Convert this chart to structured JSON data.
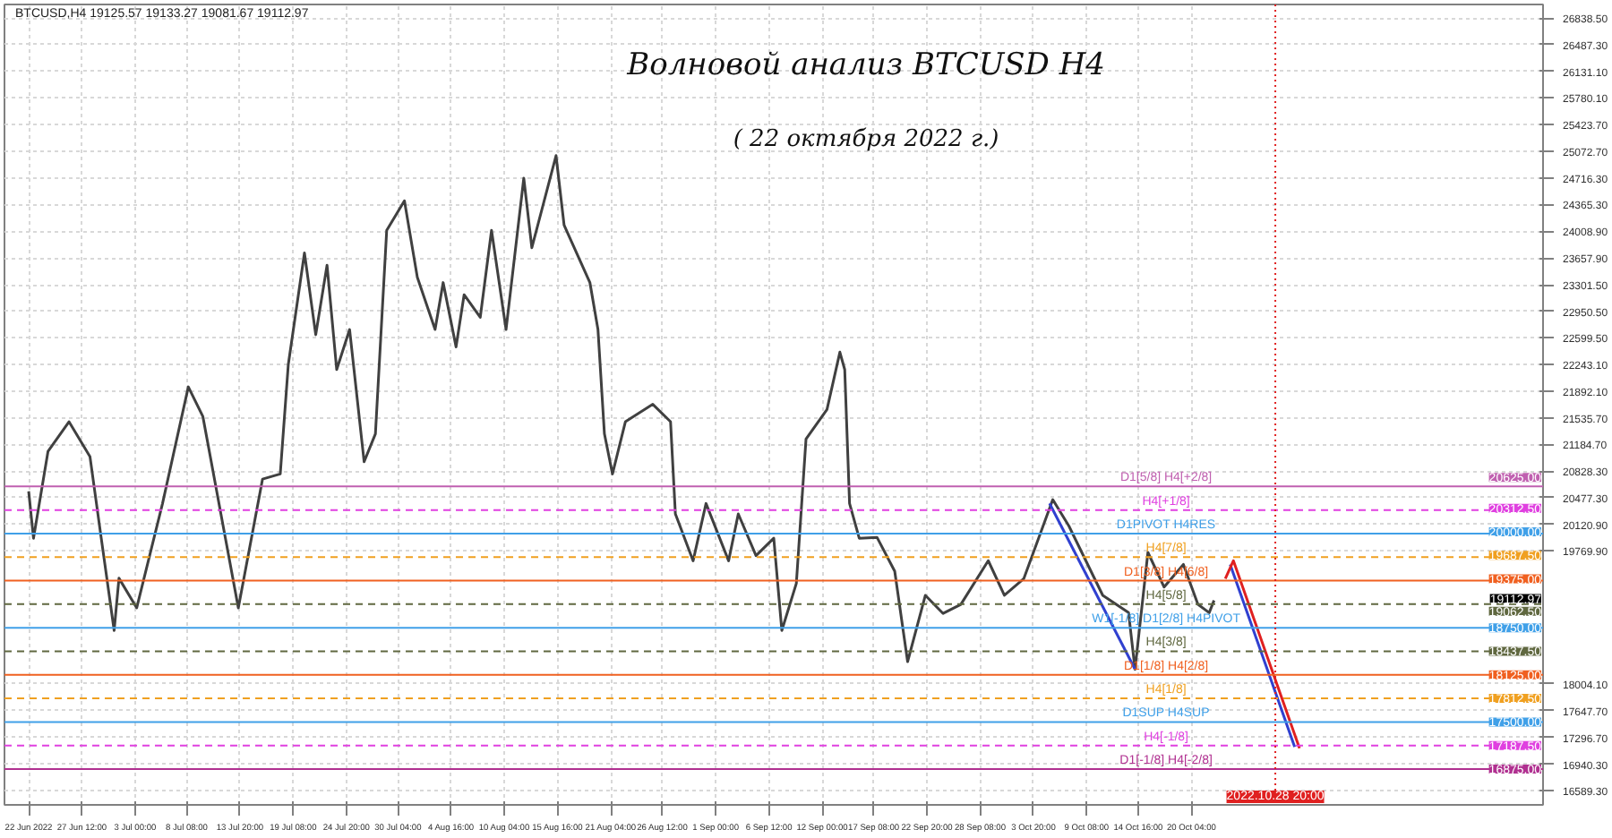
{
  "chart_data": {
    "type": "line",
    "title": "Волновой анализ BTCUSD H4",
    "subtitle": "( 22 октября 2022 г.)",
    "annotations": [
      "BTCUSD,H4  19125.57 19133.27 19081.67 19112.97",
      {
        "text": "19112.97",
        "y": 19112.97
      },
      {
        "text": "20625.00",
        "y": 20625
      },
      {
        "text": "20312.50",
        "y": 20312.5
      },
      {
        "text": "20000.00",
        "y": 20000
      },
      {
        "text": "19687.50",
        "y": 19687.5
      },
      {
        "text": "19375.00",
        "y": 19375
      },
      {
        "text": "19062.50",
        "y": 19062.5
      },
      {
        "text": "18750.00",
        "y": 18750
      },
      {
        "text": "18437.50",
        "y": 18437.5
      },
      {
        "text": "18125.00",
        "y": 18125
      },
      {
        "text": "17812.50",
        "y": 17812.5
      },
      {
        "text": "17500.00",
        "y": 17500
      },
      {
        "text": "17187.50",
        "y": 17187.5
      },
      {
        "text": "16875.00",
        "y": 16875
      }
    ],
    "xlim": [
      "2022-06-19T12:00",
      "2022-11-25T12:00"
    ],
    "ylim": [
      16400,
      27020
    ],
    "xticks": [
      {
        "value": "2022-06-22T00:00",
        "label": "22 Jun 2022"
      },
      {
        "value": "2022-06-27T12:00",
        "label": "27 Jun 12:00"
      },
      {
        "value": "2022-07-03T00:00",
        "label": "3 Jul 00:00"
      },
      {
        "value": "2022-07-08T08:00",
        "label": "8 Jul 08:00"
      },
      {
        "value": "2022-07-13T20:00",
        "label": "13 Jul 20:00"
      },
      {
        "value": "2022-07-19T08:00",
        "label": "19 Jul 08:00"
      },
      {
        "value": "2022-07-24T20:00",
        "label": "24 Jul 20:00"
      },
      {
        "value": "2022-07-30T04:00",
        "label": "30 Jul 04:00"
      },
      {
        "value": "2022-08-04T16:00",
        "label": "4 Aug 16:00"
      },
      {
        "value": "2022-08-10T04:00",
        "label": "10 Aug 04:00"
      },
      {
        "value": "2022-08-15T16:00",
        "label": "15 Aug 16:00"
      },
      {
        "value": "2022-08-21T04:00",
        "label": "21 Aug 04:00"
      },
      {
        "value": "2022-08-26T12:00",
        "label": "26 Aug 12:00"
      },
      {
        "value": "2022-09-01T00:00",
        "label": "1 Sep 00:00"
      },
      {
        "value": "2022-09-06T12:00",
        "label": "6 Sep 12:00"
      },
      {
        "value": "2022-09-12T00:00",
        "label": "12 Sep 00:00"
      },
      {
        "value": "2022-09-17T08:00",
        "label": "17 Sep 08:00"
      },
      {
        "value": "2022-09-22T20:00",
        "label": "22 Sep 20:00"
      },
      {
        "value": "2022-09-28T08:00",
        "label": "28 Sep 08:00"
      },
      {
        "value": "2022-10-03T20:00",
        "label": "3 Oct 20:00"
      },
      {
        "value": "2022-10-09T08:00",
        "label": "9 Oct 08:00"
      },
      {
        "value": "2022-10-14T16:00",
        "label": "14 Oct 16:00"
      },
      {
        "value": "2022-10-20T04:00",
        "label": "20 Oct 04:00"
      }
    ],
    "yticks": [
      {
        "value": 26838.5,
        "label": "26838.50"
      },
      {
        "value": 26487.3,
        "label": "26487.30"
      },
      {
        "value": 26131.1,
        "label": "26131.10"
      },
      {
        "value": 25780.1,
        "label": "25780.10"
      },
      {
        "value": 25423.7,
        "label": "25423.70"
      },
      {
        "value": 25072.7,
        "label": "25072.70"
      },
      {
        "value": 24716.3,
        "label": "24716.30"
      },
      {
        "value": 24365.3,
        "label": "24365.30"
      },
      {
        "value": 24008.9,
        "label": "24008.90"
      },
      {
        "value": 23657.9,
        "label": "23657.90"
      },
      {
        "value": 23301.5,
        "label": "23301.50"
      },
      {
        "value": 22950.5,
        "label": "22950.50"
      },
      {
        "value": 22599.5,
        "label": "22599.50"
      },
      {
        "value": 22243.1,
        "label": "22243.10"
      },
      {
        "value": 21892.1,
        "label": "21892.10"
      },
      {
        "value": 21535.7,
        "label": "21535.70"
      },
      {
        "value": 21184.7,
        "label": "21184.70"
      },
      {
        "value": 20828.3,
        "label": "20828.30"
      },
      {
        "value": 20477.3,
        "label": "20477.30"
      },
      {
        "value": 20120.9,
        "label": "20120.90"
      },
      {
        "value": 19769.9,
        "label": "19769.90"
      },
      {
        "value": 18004.1,
        "label": "18004.10"
      },
      {
        "value": 17647.7,
        "label": "17647.70"
      },
      {
        "value": 17296.7,
        "label": "17296.70"
      },
      {
        "value": 16940.3,
        "label": "16940.30"
      },
      {
        "value": 16589.3,
        "label": "16589.30"
      }
    ],
    "grid": true,
    "series": [
      {
        "color": "#404040",
        "x": [
          "2022-06-22T00:00",
          "2022-06-22T12:00",
          "2022-06-24T00:00",
          "2022-06-26T04:00",
          "2022-06-28T08:00",
          "2022-06-29T12:00",
          "2022-06-30T20:00",
          "2022-07-01T08:00",
          "2022-07-03T04:00",
          "2022-07-05T20:00",
          "2022-07-08T12:00",
          "2022-07-10T00:00",
          "2022-07-12T08:00",
          "2022-07-13T16:00",
          "2022-07-16T04:00",
          "2022-07-18T00:00",
          "2022-07-18T20:00",
          "2022-07-20T12:00",
          "2022-07-21T16:00",
          "2022-07-22T20:00",
          "2022-07-23T20:00",
          "2022-07-25T04:00",
          "2022-07-26T16:00",
          "2022-07-27T20:00",
          "2022-07-29T00:00",
          "2022-07-30T20:00",
          "2022-08-01T04:00",
          "2022-08-03T00:00",
          "2022-08-03T20:00",
          "2022-08-05T04:00",
          "2022-08-06T00:00",
          "2022-08-07T16:00",
          "2022-08-08T20:00",
          "2022-08-10T08:00",
          "2022-08-12T04:00",
          "2022-08-13T00:00",
          "2022-08-15T12:00",
          "2022-08-16T08:00",
          "2022-08-19T00:00",
          "2022-08-19T20:00",
          "2022-08-20T12:00",
          "2022-08-21T08:00",
          "2022-08-22T16:00",
          "2022-08-25T12:00",
          "2022-08-27T08:00",
          "2022-08-27T20:00",
          "2022-08-29T16:00",
          "2022-08-31T00:00",
          "2022-09-02T08:00",
          "2022-09-03T08:00",
          "2022-09-05T04:00",
          "2022-09-07T00:00",
          "2022-09-07T20:00",
          "2022-09-09T08:00",
          "2022-09-10T08:00",
          "2022-09-12T12:00",
          "2022-09-13T20:00",
          "2022-09-14T08:00",
          "2022-09-14T20:00",
          "2022-09-15T20:00",
          "2022-09-17T16:00",
          "2022-09-19T12:00",
          "2022-09-20T20:00",
          "2022-09-22T16:00",
          "2022-09-24T12:00",
          "2022-09-26T08:00",
          "2022-09-29T04:00",
          "2022-09-30T20:00",
          "2022-10-02T20:00",
          "2022-10-05T20:00",
          "2022-10-07T12:00",
          "2022-10-11T00:00",
          "2022-10-13T16:00",
          "2022-10-14T08:00",
          "2022-10-15T16:00",
          "2022-10-17T08:00",
          "2022-10-19T08:00",
          "2022-10-20T20:00",
          "2022-10-22T00:00",
          "2022-10-22T12:00"
        ],
        "values": [
          20561,
          19938,
          21091,
          21484,
          21022,
          19938,
          18714,
          19407,
          19014,
          20399,
          21946,
          21554,
          19938,
          19014,
          20722,
          20791,
          22245,
          23723,
          22638,
          23561,
          22176,
          22707,
          20953,
          21323,
          24023,
          24415,
          23400,
          22707,
          23330,
          22477,
          23169,
          22869,
          24023,
          22707,
          24715,
          23792,
          25015,
          24092,
          23330,
          22707,
          21323,
          20791,
          21484,
          21715,
          21484,
          20261,
          19638,
          20399,
          19638,
          20261,
          19707,
          19938,
          18714,
          19338,
          21253,
          21646,
          22407,
          22176,
          20399,
          19938,
          19950,
          19500,
          18300,
          19180,
          18940,
          19060,
          19640,
          19180,
          19400,
          20450,
          20100,
          19180,
          18950,
          18200,
          19750,
          19290,
          19590,
          19060,
          18950,
          19113
        ]
      },
      {
        "color": "#3040d0",
        "x": [
          "2022-10-05T12:00",
          "2022-10-14T08:00"
        ],
        "values": [
          20400,
          18200
        ]
      },
      {
        "color": "#3040d0",
        "x": [
          "2022-10-24T04:00",
          "2022-10-30T20:00"
        ],
        "values": [
          19590,
          17170
        ]
      },
      {
        "color": "#e02020",
        "x": [
          "2022-10-23T16:00",
          "2022-10-24T12:00",
          "2022-10-31T08:00"
        ],
        "values": [
          19400,
          19640,
          17150
        ]
      }
    ],
    "ref_lines": [
      {
        "axis": "y",
        "value": 20625,
        "label": "D1[5/8] H4[+2/8]",
        "color": "#c060b0",
        "line_style": "solid"
      },
      {
        "axis": "y",
        "value": 20312.5,
        "label": "H4[+1/8]",
        "color": "#e040e0",
        "line_style": "dashed"
      },
      {
        "axis": "y",
        "value": 20000,
        "label": "D1PIVOT H4RES",
        "color": "#40a0e8",
        "line_style": "solid"
      },
      {
        "axis": "y",
        "value": 19687.5,
        "label": "H4[7/8]",
        "color": "#f0a020",
        "line_style": "dashed"
      },
      {
        "axis": "y",
        "value": 19375,
        "label": "D1[3/8] H4[6/8]",
        "color": "#f06020",
        "line_style": "solid"
      },
      {
        "axis": "y",
        "value": 19062.5,
        "label": "H4[5/8]",
        "color": "#606840",
        "line_style": "dashed"
      },
      {
        "axis": "y",
        "value": 18750,
        "label": "W1[-1/8] D1[2/8] H4PIVOT",
        "color": "#40a0e8",
        "line_style": "solid"
      },
      {
        "axis": "y",
        "value": 18437.5,
        "label": "H4[3/8]",
        "color": "#606840",
        "line_style": "dashed"
      },
      {
        "axis": "y",
        "value": 18125,
        "label": "D1[1/8] H4[2/8]",
        "color": "#f06020",
        "line_style": "solid"
      },
      {
        "axis": "y",
        "value": 17812.5,
        "label": "H4[1/8]",
        "color": "#f0a020",
        "line_style": "dashed"
      },
      {
        "axis": "y",
        "value": 17500,
        "label": "D1SUP H4SUP",
        "color": "#40a0e8",
        "line_style": "solid"
      },
      {
        "axis": "y",
        "value": 17187.5,
        "label": "H4[-1/8]",
        "color": "#e040e0",
        "line_style": "dashed"
      },
      {
        "axis": "y",
        "value": 16875,
        "label": "D1[-1/8] H4[-2/8]",
        "color": "#b03090",
        "line_style": "solid"
      },
      {
        "axis": "x",
        "value": "2022-10-28T20:00",
        "label": "2022.10.28 20:00",
        "color": "#e02020",
        "line_style": "dotted"
      }
    ]
  }
}
